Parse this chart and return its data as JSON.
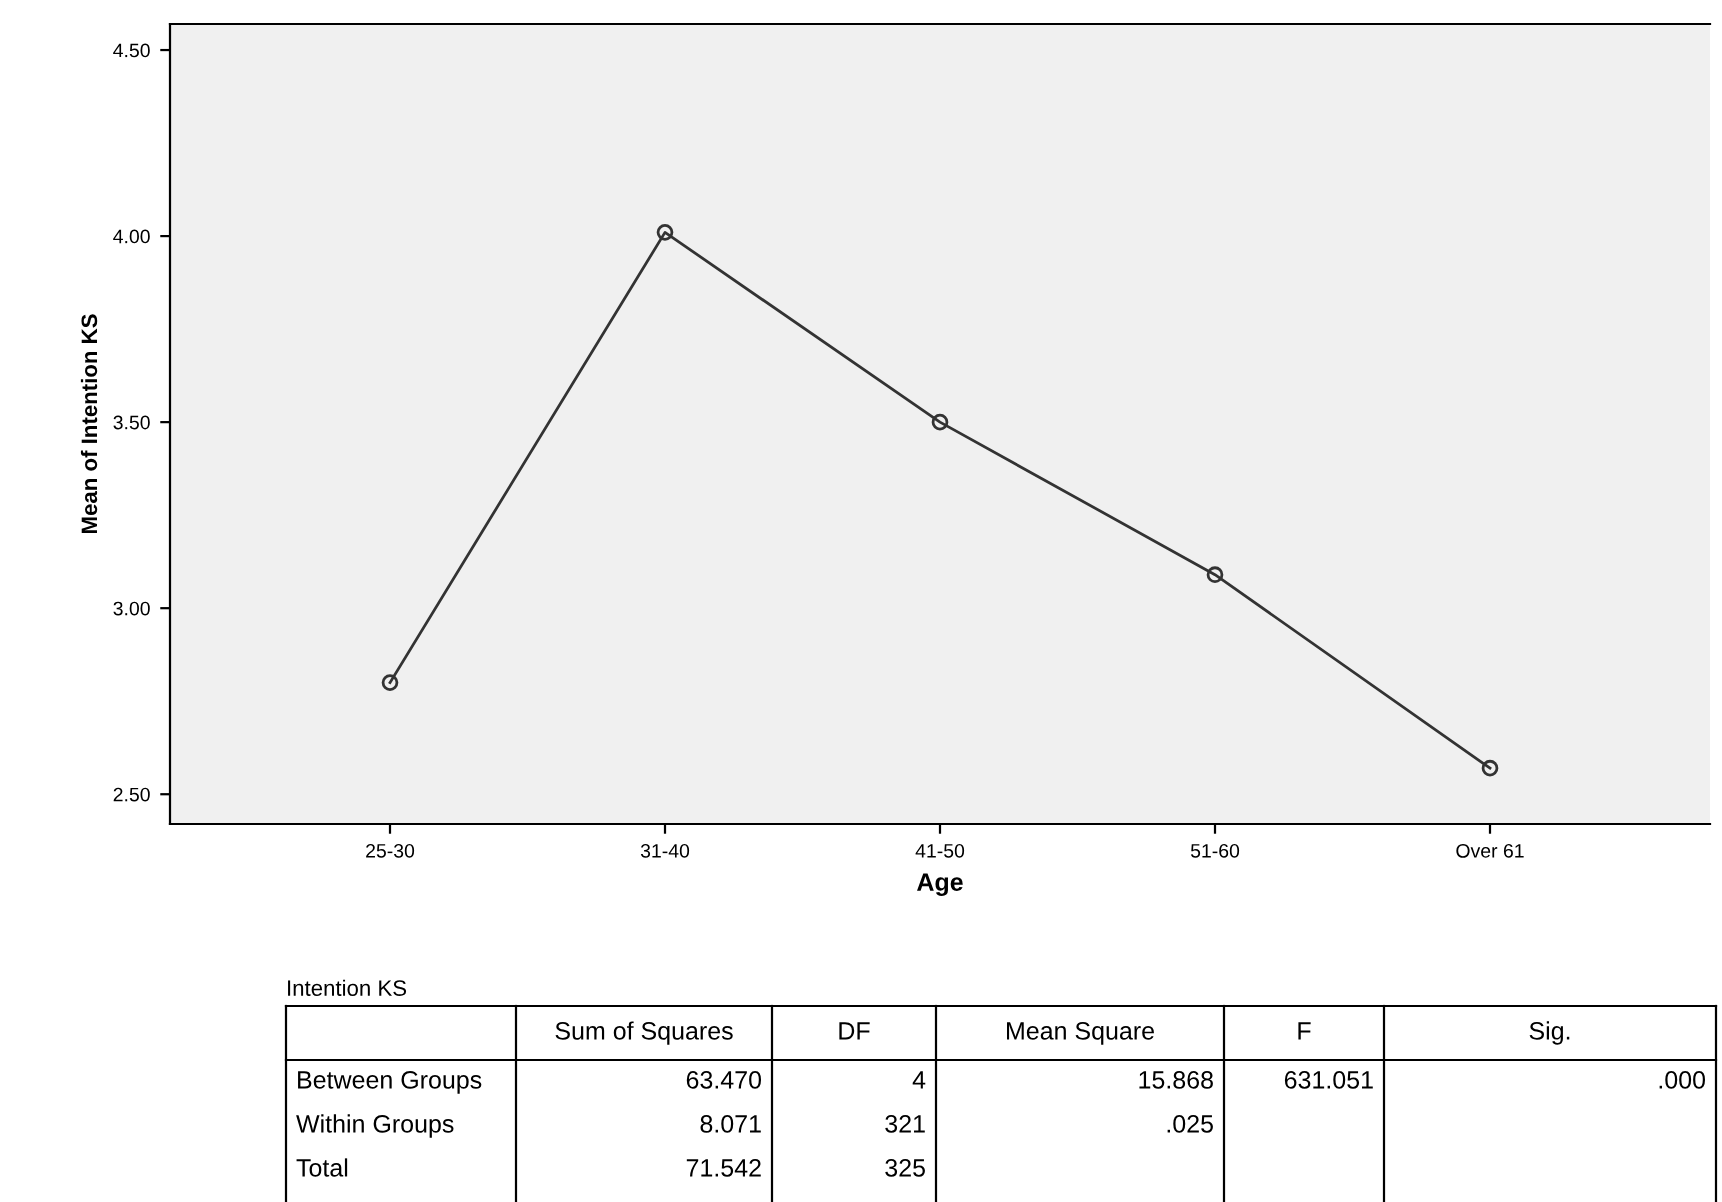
{
  "chart_data": [
    {
      "type": "line",
      "xlabel": "Age",
      "ylabel": "Mean of Intention KS",
      "categories": [
        "25-30",
        "31-40",
        "41-50",
        "51-60",
        "Over 61"
      ],
      "series": [
        {
          "color": "#333333",
          "values": [
            2.8,
            4.01,
            3.5,
            3.09,
            2.57
          ]
        }
      ],
      "ylim": [
        2.42,
        4.57
      ],
      "yticks": [
        {
          "value": 2.5,
          "label": "2.50"
        },
        {
          "value": 3.0,
          "label": "3.00"
        },
        {
          "value": 3.5,
          "label": "3.50"
        },
        {
          "value": 4.0,
          "label": "4.00"
        },
        {
          "value": 4.5,
          "label": "4.50"
        }
      ],
      "marker": "circle",
      "line_style": "solid",
      "grid": false,
      "legend": false
    },
    {
      "type": "other",
      "title": "Intention KS",
      "categories": [
        null,
        "Sum of Squares",
        "DF",
        "Mean Square",
        "F",
        "Sig."
      ],
      "y_categories": [
        "Between Groups",
        "Within Groups",
        "Total"
      ],
      "cell_labels": [
        [
          "63.470",
          "4",
          "15.868",
          "631.051",
          ".000"
        ],
        [
          "8.071",
          "321",
          ".025",
          null,
          null
        ],
        [
          "71.542",
          "325",
          null,
          null,
          null
        ]
      ]
    }
  ]
}
